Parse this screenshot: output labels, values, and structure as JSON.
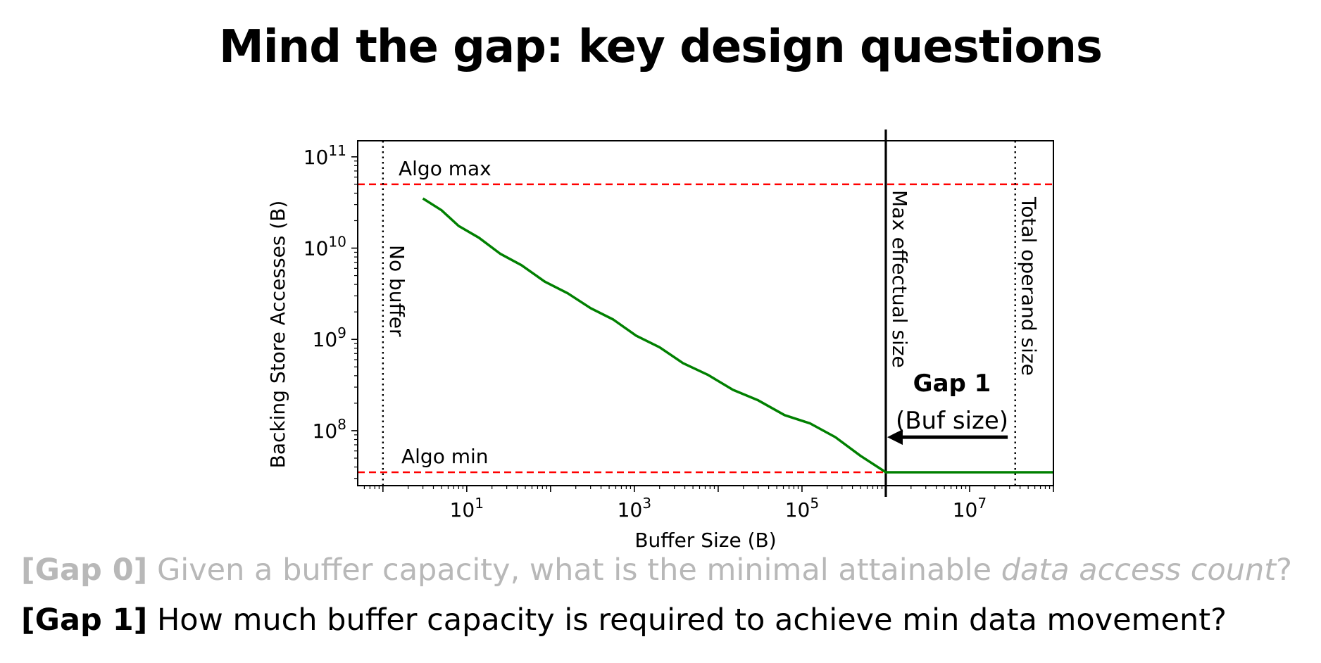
{
  "slide": {
    "title": "Mind the gap: key design questions"
  },
  "questions": [
    {
      "tag": "[Gap 0]",
      "text_before": " Given a buffer capacity, what is the minimal attainable ",
      "emphasis": "data access count",
      "text_after": "?",
      "color": "#b8b8b8"
    },
    {
      "tag": "[Gap 1]",
      "text": " How much buffer capacity is required to achieve min data movement?",
      "color": "#000000"
    }
  ],
  "chart_data": {
    "type": "line",
    "xscale": "log",
    "yscale": "log",
    "xlabel": "Buffer Size (B)",
    "ylabel": "Backing Store Accesses (B)",
    "xlim": [
      0.5,
      100000000
    ],
    "ylim": [
      25000000,
      150000000000
    ],
    "xticks": [
      {
        "base": "10",
        "exp": "1",
        "value": 10
      },
      {
        "base": "10",
        "exp": "3",
        "value": 1000
      },
      {
        "base": "10",
        "exp": "5",
        "value": 100000
      },
      {
        "base": "10",
        "exp": "7",
        "value": 10000000
      }
    ],
    "yticks": [
      {
        "base": "10",
        "exp": "8",
        "value": 100000000
      },
      {
        "base": "10",
        "exp": "9",
        "value": 1000000000
      },
      {
        "base": "10",
        "exp": "10",
        "value": 10000000000
      },
      {
        "base": "10",
        "exp": "11",
        "value": 100000000000
      }
    ],
    "series": [
      {
        "color": "#008000",
        "points": [
          [
            3,
            35000000000
          ],
          [
            5,
            26000000000
          ],
          [
            8,
            17500000000
          ],
          [
            14,
            13000000000
          ],
          [
            25,
            8700000000
          ],
          [
            45,
            6500000000
          ],
          [
            85,
            4300000000
          ],
          [
            160,
            3200000000
          ],
          [
            300,
            2200000000
          ],
          [
            560,
            1650000000
          ],
          [
            1050,
            1100000000
          ],
          [
            2000,
            820000000
          ],
          [
            3800,
            550000000
          ],
          [
            7500,
            410000000
          ],
          [
            15000,
            280000000
          ],
          [
            30000,
            215000000
          ],
          [
            62000,
            148000000
          ],
          [
            125000,
            120000000
          ],
          [
            250000,
            85000000
          ],
          [
            500000,
            53000000
          ],
          [
            1000000,
            35000000
          ],
          [
            2000000,
            35000000
          ],
          [
            8000000,
            35000000
          ],
          [
            100000000,
            35000000
          ]
        ]
      }
    ],
    "hlines": [
      {
        "label": "Algo max",
        "value": 50000000000,
        "color": "#ff0000",
        "style": "dashed"
      },
      {
        "label": "Algo min",
        "value": 35000000,
        "color": "#ff0000",
        "style": "dashed"
      }
    ],
    "vlines": [
      {
        "label": "No buffer",
        "value": 1,
        "color": "#000000",
        "style": "dotted"
      },
      {
        "label": "Max effectual size",
        "value": 1000000,
        "color": "#000000",
        "style": "solid"
      },
      {
        "label": "Total operand size",
        "value": 35000000,
        "color": "#000000",
        "style": "dotted"
      }
    ],
    "annotation": {
      "title": "Gap 1",
      "subtitle": "(Buf size)",
      "arrow_from": 32000000,
      "arrow_to": 1000000,
      "arrow_y": 85000000
    }
  }
}
